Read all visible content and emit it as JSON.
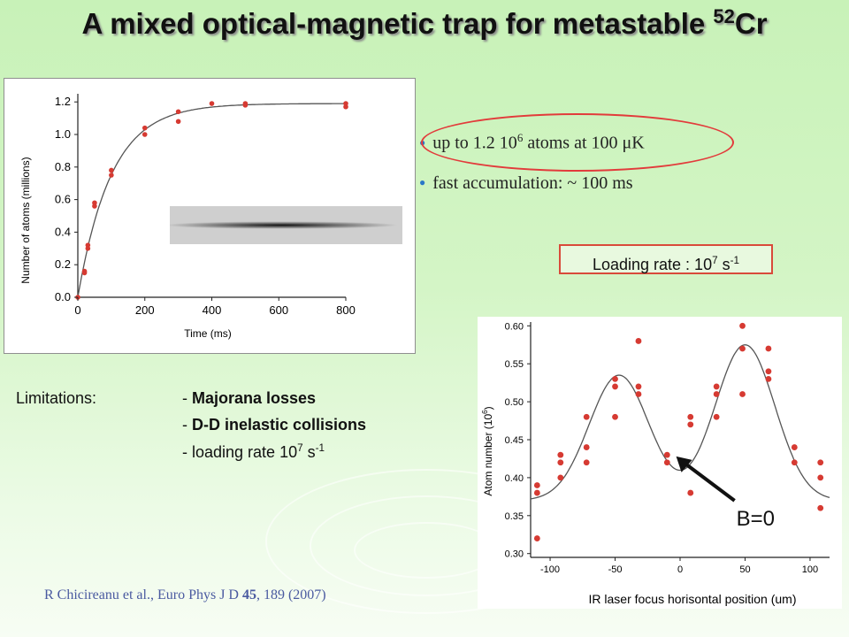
{
  "title": {
    "main": "A mixed optical-magnetic trap for metastable ",
    "isotope": "52",
    "element": "Cr"
  },
  "bullets": [
    {
      "text": "up to 1.2 10",
      "sup": "6",
      "text2": " atoms at 100 μK"
    },
    {
      "text": "fast accumulation:  ~  100 ms",
      "sup": "",
      "text2": ""
    }
  ],
  "loading_rate": {
    "text": "Loading rate : 10",
    "sup": "7",
    "text2": " s",
    "sup2": "-1"
  },
  "limitations": {
    "label": "Limitations:",
    "items": [
      {
        "prefix": "- ",
        "text": "Majorana losses",
        "bold": true
      },
      {
        "prefix": "- ",
        "text": "D-D inelastic collisions",
        "bold": true
      },
      {
        "prefix": "- ",
        "text": "loading rate 10",
        "sup": "7",
        "text2": " s",
        "sup2": "-1",
        "bold": false
      }
    ]
  },
  "citation": {
    "authors": "R Chicireanu et al., Euro Phys J D ",
    "volume": "45",
    "rest": ", 189 (2007)"
  },
  "colors": {
    "marker": "#d63a32",
    "fit_line": "#555555",
    "ellipse": "#e23b3b",
    "bullet": "#2a78c8"
  },
  "chart_data": [
    {
      "type": "scatter",
      "title": "",
      "xlabel": "Time (ms)",
      "ylabel": "Number of atoms (millions)",
      "xlim": [
        0,
        800
      ],
      "ylim": [
        0,
        1.25
      ],
      "xticks": [
        0,
        200,
        400,
        600,
        800
      ],
      "yticks": [
        0.0,
        0.2,
        0.4,
        0.6,
        0.8,
        1.0,
        1.2
      ],
      "ytick_labels": [
        "0.0",
        "0.2",
        "0.4",
        "0.6",
        "0.8",
        "1.0",
        "1.2"
      ],
      "grid": false,
      "x": [
        0,
        20,
        20,
        30,
        30,
        50,
        50,
        100,
        100,
        200,
        200,
        300,
        300,
        400,
        500,
        500,
        800,
        800
      ],
      "y": [
        0.0,
        0.15,
        0.16,
        0.3,
        0.32,
        0.56,
        0.58,
        0.75,
        0.78,
        1.0,
        1.04,
        1.08,
        1.14,
        1.19,
        1.18,
        1.19,
        1.17,
        1.19
      ],
      "fit": {
        "model": "saturating exponential",
        "n_inf": 1.19,
        "tau_ms": 100
      },
      "inset": "absorption image of elongated atom cloud"
    },
    {
      "type": "scatter",
      "title": "",
      "xlabel": "IR laser focus horisontal position (um)",
      "ylabel": "Atom number (10",
      "ylabel_sup": "6",
      "ylabel_end": ")",
      "xlim": [
        -115,
        115
      ],
      "ylim": [
        0.295,
        0.605
      ],
      "xticks": [
        -100,
        -50,
        0,
        50,
        100
      ],
      "yticks": [
        0.3,
        0.35,
        0.4,
        0.45,
        0.5,
        0.55,
        0.6
      ],
      "ytick_labels": [
        "0.30",
        "0.35",
        "0.40",
        "0.45",
        "0.50",
        "0.55",
        "0.60"
      ],
      "grid": false,
      "x": [
        -110,
        -110,
        -110,
        -92,
        -92,
        -92,
        -72,
        -72,
        -72,
        -50,
        -50,
        -50,
        -32,
        -32,
        -32,
        -10,
        -10,
        8,
        8,
        8,
        28,
        28,
        28,
        48,
        48,
        48,
        68,
        68,
        68,
        88,
        88,
        108,
        108,
        108
      ],
      "y": [
        0.32,
        0.38,
        0.39,
        0.4,
        0.42,
        0.43,
        0.42,
        0.44,
        0.48,
        0.48,
        0.52,
        0.53,
        0.51,
        0.52,
        0.58,
        0.42,
        0.43,
        0.38,
        0.47,
        0.48,
        0.48,
        0.51,
        0.52,
        0.51,
        0.57,
        0.6,
        0.53,
        0.54,
        0.57,
        0.42,
        0.44,
        0.36,
        0.4,
        0.42
      ],
      "fit": {
        "model": "double gaussian",
        "baseline": 0.37,
        "peaks": [
          {
            "center": -47,
            "amp": 0.165,
            "sigma": 23
          },
          {
            "center": 50,
            "amp": 0.205,
            "sigma": 23
          }
        ]
      },
      "annotation": {
        "text": "B=0",
        "points_to_x": -3,
        "points_to_y": 0.428
      }
    }
  ]
}
